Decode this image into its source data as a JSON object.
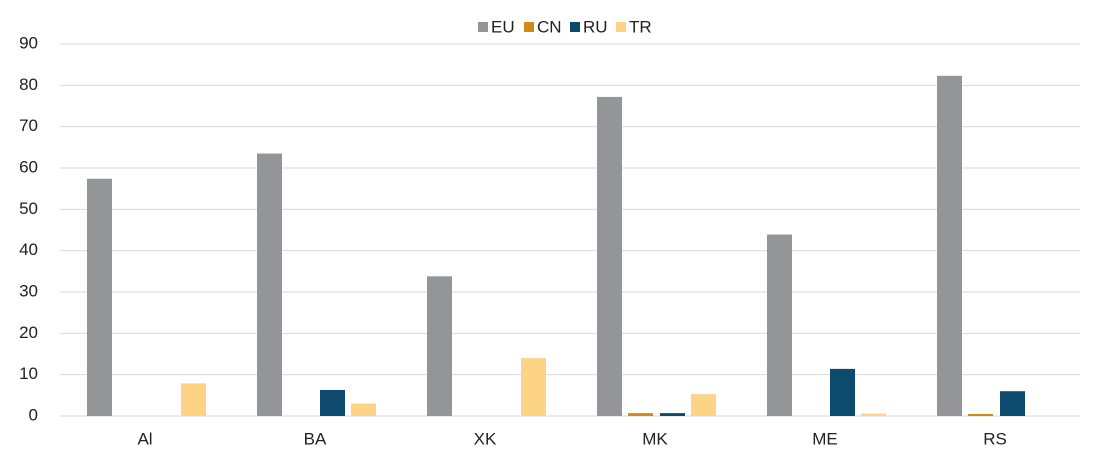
{
  "chart_data": {
    "type": "bar",
    "categories": [
      "Al",
      "BA",
      "XK",
      "MK",
      "ME",
      "RS"
    ],
    "series": [
      {
        "name": "EU",
        "color": "#939598",
        "values": [
          57.4,
          63.5,
          33.8,
          77.2,
          43.9,
          82.3
        ]
      },
      {
        "name": "CN",
        "color": "#d08a15",
        "values": [
          0,
          0,
          0,
          0.7,
          0,
          0.5
        ]
      },
      {
        "name": "RU",
        "color": "#0c4a6e",
        "values": [
          0,
          6.3,
          0,
          0.7,
          11.4,
          6.0
        ]
      },
      {
        "name": "TR",
        "color": "#fdd486",
        "values": [
          7.9,
          3.0,
          14.0,
          5.3,
          0.6,
          0
        ]
      }
    ],
    "ylim": [
      0,
      90
    ],
    "yticks": [
      0,
      10,
      20,
      30,
      40,
      50,
      60,
      70,
      80,
      90
    ],
    "grid": true,
    "legend": "top"
  }
}
